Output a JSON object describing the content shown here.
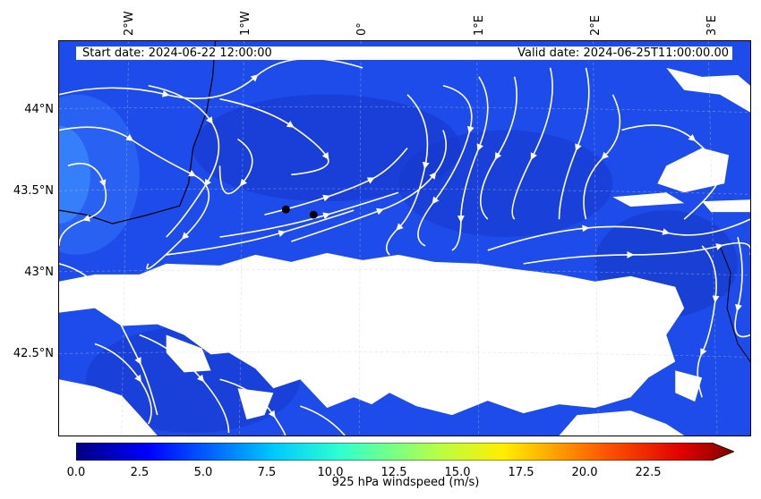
{
  "map": {
    "start_date": "Start date: 2024-06-22  12:00:00",
    "valid_date": "Valid  date: 2024-06-25T11:00:00.00",
    "lon_labels": [
      "2°W",
      "1°W",
      "0°",
      "1°E",
      "2°E",
      "3°E"
    ],
    "lat_labels": [
      "44°N",
      "43.5°N",
      "43°N",
      "42.5°N"
    ],
    "colorbar": {
      "label": "925 hPa windspeed (m/s)",
      "ticks": [
        "0.0",
        "2.5",
        "5.0",
        "7.5",
        "10.0",
        "12.5",
        "15.0",
        "17.5",
        "20.0",
        "22.5"
      ],
      "vmin": 0,
      "vmax": 25,
      "extend": "max"
    },
    "colors": {
      "sea_field": "#1a47e6",
      "masked": "#ffffff",
      "streamlines": "#ffffff",
      "coastline": "#000000"
    },
    "field": "925 hPa windspeed",
    "projection": "Lambert conformal (tilted graticule)",
    "markers": [
      "city-dot",
      "city-dot"
    ]
  }
}
